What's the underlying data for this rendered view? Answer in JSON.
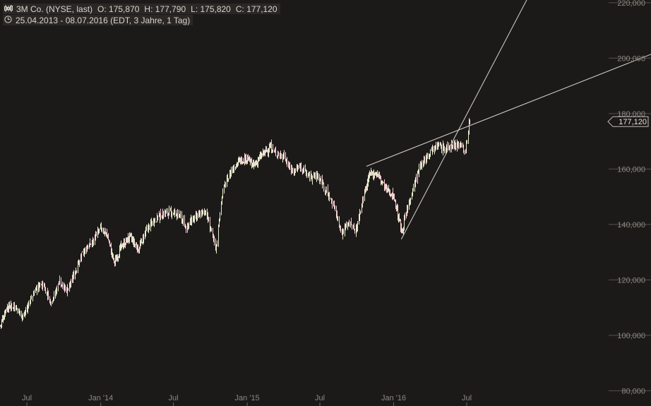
{
  "header": {
    "icon": "candlestick-icon",
    "name": "3M Co. (NYSE, last)",
    "open": "O: 175,870",
    "high": "H: 177,790",
    "low": "L: 175,820",
    "close": "C: 177,120",
    "clock_icon": "clock-icon",
    "range": "25.04.2013 - 08.07.2016 (EDT, 3 Jahre, 1 Tag)"
  },
  "last_price_label": "177,120",
  "colors": {
    "background": "#1c1a19",
    "up": "#e4eecb",
    "down": "#f2c9d0",
    "text": "#8c8882",
    "line": "#d8d4cc"
  },
  "chart_data": {
    "type": "candlestick",
    "y_ticks": [
      {
        "value": 220,
        "label": "220,000"
      },
      {
        "value": 200,
        "label": "200,000"
      },
      {
        "value": 180,
        "label": "180,000"
      },
      {
        "value": 160,
        "label": "160,000"
      },
      {
        "value": 140,
        "label": "140,000"
      },
      {
        "value": 120,
        "label": "120,000"
      },
      {
        "value": 100,
        "label": "100,000"
      },
      {
        "value": 80,
        "label": "80,000"
      }
    ],
    "ylim": [
      74.5,
      221
    ],
    "x_range": [
      "2013-04-25",
      "2016-07-08"
    ],
    "x_ticks": [
      {
        "date": "2013-07-01",
        "label": "Jul"
      },
      {
        "date": "2014-01-01",
        "label": "Jan '14"
      },
      {
        "date": "2014-07-01",
        "label": "Jul"
      },
      {
        "date": "2015-01-01",
        "label": "Jan '15"
      },
      {
        "date": "2015-07-01",
        "label": "Jul"
      },
      {
        "date": "2016-01-01",
        "label": "Jan '16"
      },
      {
        "date": "2016-07-01",
        "label": "Jul"
      }
    ],
    "last_price": 177.12,
    "price_path": [
      [
        "2013-04-25",
        103.5
      ],
      [
        "2013-05-10",
        110.0
      ],
      [
        "2013-05-31",
        110.8
      ],
      [
        "2013-06-21",
        106.5
      ],
      [
        "2013-07-19",
        116.0
      ],
      [
        "2013-08-09",
        118.5
      ],
      [
        "2013-08-30",
        112.0
      ],
      [
        "2013-09-20",
        119.5
      ],
      [
        "2013-10-11",
        116.0
      ],
      [
        "2013-10-31",
        124.0
      ],
      [
        "2013-11-22",
        131.0
      ],
      [
        "2013-12-13",
        134.0
      ],
      [
        "2013-12-31",
        139.0
      ],
      [
        "2014-01-17",
        136.0
      ],
      [
        "2014-02-03",
        126.0
      ],
      [
        "2014-02-21",
        132.0
      ],
      [
        "2014-03-14",
        135.5
      ],
      [
        "2014-04-04",
        131.0
      ],
      [
        "2014-04-25",
        138.0
      ],
      [
        "2014-05-16",
        142.0
      ],
      [
        "2014-06-06",
        144.0
      ],
      [
        "2014-06-27",
        144.5
      ],
      [
        "2014-07-18",
        143.0
      ],
      [
        "2014-07-31",
        139.0
      ],
      [
        "2014-08-15",
        141.5
      ],
      [
        "2014-09-05",
        143.5
      ],
      [
        "2014-09-19",
        145.0
      ],
      [
        "2014-10-03",
        137.0
      ],
      [
        "2014-10-15",
        131.5
      ],
      [
        "2014-10-31",
        152.0
      ],
      [
        "2014-11-21",
        159.5
      ],
      [
        "2014-12-12",
        163.0
      ],
      [
        "2014-12-31",
        164.0
      ],
      [
        "2015-01-16",
        161.0
      ],
      [
        "2015-02-06",
        165.0
      ],
      [
        "2015-02-27",
        168.0
      ],
      [
        "2015-03-13",
        166.0
      ],
      [
        "2015-04-03",
        164.5
      ],
      [
        "2015-04-24",
        159.0
      ],
      [
        "2015-05-15",
        161.0
      ],
      [
        "2015-06-05",
        157.0
      ],
      [
        "2015-06-26",
        157.5
      ],
      [
        "2015-07-17",
        152.0
      ],
      [
        "2015-08-07",
        146.0
      ],
      [
        "2015-08-25",
        136.5
      ],
      [
        "2015-09-11",
        141.0
      ],
      [
        "2015-09-28",
        137.5
      ],
      [
        "2015-10-15",
        149.0
      ],
      [
        "2015-11-02",
        158.0
      ],
      [
        "2015-11-20",
        158.5
      ],
      [
        "2015-12-11",
        153.0
      ],
      [
        "2015-12-31",
        150.5
      ],
      [
        "2016-01-20",
        137.5
      ],
      [
        "2016-02-12",
        150.0
      ],
      [
        "2016-03-04",
        160.0
      ],
      [
        "2016-03-24",
        165.0
      ],
      [
        "2016-04-14",
        169.0
      ],
      [
        "2016-05-05",
        167.0
      ],
      [
        "2016-05-26",
        168.5
      ],
      [
        "2016-06-16",
        169.0
      ],
      [
        "2016-06-27",
        166.0
      ],
      [
        "2016-07-08",
        177.1
      ]
    ],
    "trendlines": [
      {
        "from": [
          "2015-10-28",
          161.0
        ],
        "to": [
          "2016-07-08",
          175.5
        ]
      },
      {
        "from": [
          "2015-11-15",
          161.0
        ],
        "to": [
          "2016-07-08",
          181.0
        ]
      }
    ],
    "channel_lines": [
      {
        "name": "upper",
        "from": [
          "2015-10-25",
          161.0
        ],
        "to": [
          "2016-07-08",
          175.3
        ],
        "extend_to": [
          "2017-10-31",
          203.0
        ]
      },
      {
        "name": "lower",
        "from": [
          "2016-01-20",
          134.7
        ],
        "to": [
          "2016-07-08",
          167.0
        ],
        "extend_to": [
          "2016-12-01",
          222.0
        ]
      }
    ]
  }
}
